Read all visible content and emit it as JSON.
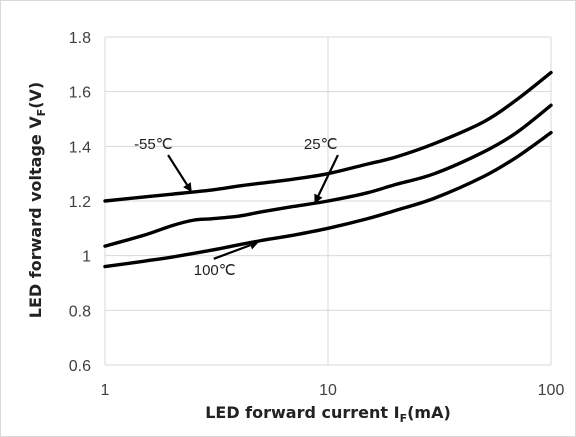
{
  "chart_data": {
    "type": "line",
    "xlabel": "LED forward current I",
    "xlabel_sub": "F",
    "xlabel_unit": "(mA)",
    "ylabel": "LED forward voltage V",
    "ylabel_sub": "F",
    "ylabel_unit": "(V)",
    "x_scale": "log",
    "xlim": [
      1,
      100
    ],
    "ylim": [
      0.6,
      1.8
    ],
    "x_ticks": [
      1,
      10,
      100
    ],
    "x_tick_labels": [
      "1",
      "10",
      "100"
    ],
    "y_ticks": [
      0.6,
      0.8,
      1.0,
      1.2,
      1.4,
      1.6,
      1.8
    ],
    "y_tick_labels": [
      "0.6",
      "0.8",
      "1",
      "1.2",
      "1.4",
      "1.6",
      "1.8"
    ],
    "grid": true,
    "series": [
      {
        "name": "-55℃",
        "x": [
          1,
          1.5,
          2,
          3,
          4,
          5,
          7,
          10,
          15,
          20,
          30,
          50,
          70,
          100
        ],
        "y": [
          1.2,
          1.215,
          1.225,
          1.24,
          1.255,
          1.265,
          1.28,
          1.3,
          1.335,
          1.36,
          1.41,
          1.49,
          1.57,
          1.67
        ]
      },
      {
        "name": "25℃",
        "x": [
          1,
          1.5,
          2,
          2.5,
          3,
          4,
          5,
          7,
          10,
          15,
          20,
          30,
          50,
          70,
          100
        ],
        "y": [
          1.035,
          1.075,
          1.11,
          1.13,
          1.135,
          1.145,
          1.16,
          1.18,
          1.2,
          1.23,
          1.26,
          1.3,
          1.38,
          1.45,
          1.55
        ]
      },
      {
        "name": "100℃",
        "x": [
          1,
          1.5,
          2,
          3,
          4,
          5,
          7,
          10,
          15,
          20,
          30,
          50,
          70,
          100
        ],
        "y": [
          0.96,
          0.98,
          0.995,
          1.02,
          1.04,
          1.055,
          1.075,
          1.1,
          1.135,
          1.165,
          1.21,
          1.29,
          1.36,
          1.45
        ]
      }
    ],
    "annotations": [
      {
        "text": "-55℃",
        "series": 0,
        "text_x": 1.35,
        "text_y": 1.39,
        "arrow_to_x": 2.45,
        "arrow_to_y": 1.232
      },
      {
        "text": "25℃",
        "series": 1,
        "text_x": 7.8,
        "text_y": 1.39,
        "arrow_to_x": 8.7,
        "arrow_to_y": 1.19
      },
      {
        "text": "100℃",
        "series": 2,
        "text_x": 2.5,
        "text_y": 0.93,
        "arrow_to_x": 4.9,
        "arrow_to_y": 1.05
      }
    ]
  }
}
